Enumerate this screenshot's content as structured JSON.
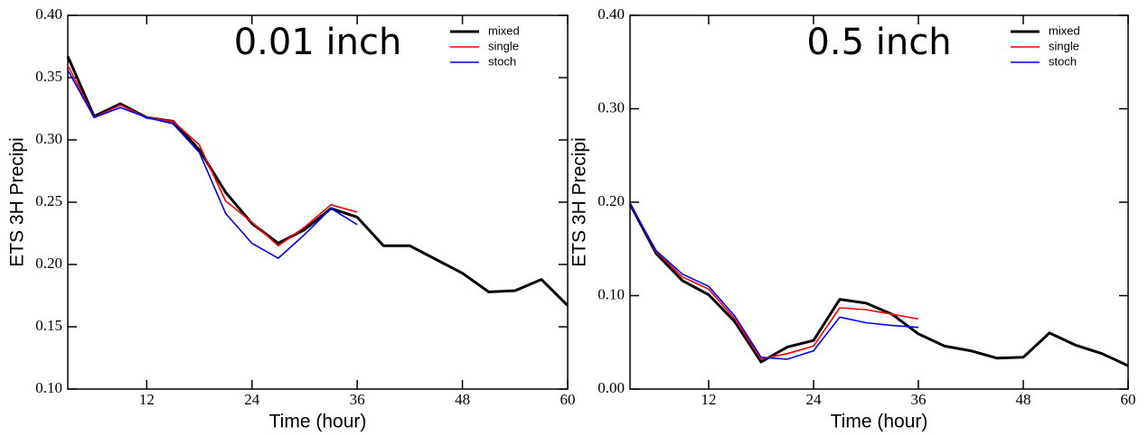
{
  "chart_data": [
    {
      "type": "line",
      "annotation": "0.01 inch",
      "xlabel": "Time (hour)",
      "ylabel": "ETS 3H Precipi",
      "x": [
        3,
        6,
        9,
        12,
        15,
        18,
        21,
        24,
        27,
        30,
        33,
        36,
        39,
        42,
        45,
        48,
        51,
        54,
        57,
        60
      ],
      "xlim": [
        3,
        60
      ],
      "xticks": [
        12,
        24,
        36,
        48,
        60
      ],
      "ylim": [
        0.1,
        0.4
      ],
      "yticks": [
        {
          "value": 0.1,
          "label": "0.10"
        },
        {
          "value": 0.15,
          "label": "0.15"
        },
        {
          "value": 0.2,
          "label": "0.20"
        },
        {
          "value": 0.25,
          "label": "0.25"
        },
        {
          "value": 0.3,
          "label": "0.30"
        },
        {
          "value": 0.35,
          "label": "0.35"
        },
        {
          "value": 0.4,
          "label": "0.40"
        }
      ],
      "legend": "upper right",
      "series": [
        {
          "name": "mixed",
          "color": "#000000",
          "values": [
            0.367,
            0.319,
            0.329,
            0.318,
            0.315,
            0.292,
            0.258,
            0.233,
            0.217,
            0.228,
            0.245,
            0.238,
            0.215,
            0.215,
            0.204,
            0.193,
            0.178,
            0.179,
            0.188,
            0.167
          ]
        },
        {
          "name": "single",
          "color": "#ff0000",
          "values": [
            0.36,
            0.318,
            0.328,
            0.318,
            0.315,
            0.296,
            0.251,
            0.234,
            0.215,
            0.23,
            0.248,
            0.242,
            null,
            null,
            null,
            null,
            null,
            null,
            null,
            null
          ]
        },
        {
          "name": "stoch",
          "color": "#0000ff",
          "values": [
            0.356,
            0.318,
            0.326,
            0.318,
            0.313,
            0.29,
            0.241,
            0.217,
            0.205,
            0.224,
            0.245,
            0.232,
            null,
            null,
            null,
            null,
            null,
            null,
            null,
            null
          ]
        }
      ]
    },
    {
      "type": "line",
      "annotation": "0.5 inch",
      "xlabel": "Time (hour)",
      "ylabel": "ETS 3H Precipi",
      "x": [
        3,
        6,
        9,
        12,
        15,
        18,
        21,
        24,
        27,
        30,
        33,
        36,
        39,
        42,
        45,
        48,
        51,
        54,
        57,
        60
      ],
      "xlim": [
        3,
        60
      ],
      "xticks": [
        12,
        24,
        36,
        48,
        60
      ],
      "ylim": [
        0,
        0.4
      ],
      "yticks": [
        {
          "value": 0,
          "label": "0.00"
        },
        {
          "value": 0.1,
          "label": "0.10"
        },
        {
          "value": 0.2,
          "label": "0.20"
        },
        {
          "value": 0.3,
          "label": "0.30"
        },
        {
          "value": 0.4,
          "label": "0.40"
        }
      ],
      "legend": "upper right",
      "series": [
        {
          "name": "mixed",
          "color": "#000000",
          "values": [
            0.198,
            0.145,
            0.116,
            0.101,
            0.072,
            0.029,
            0.045,
            0.052,
            0.096,
            0.092,
            0.08,
            0.059,
            0.046,
            0.041,
            0.033,
            0.034,
            0.06,
            0.047,
            0.038,
            0.025
          ]
        },
        {
          "name": "single",
          "color": "#ff0000",
          "values": [
            0.198,
            0.147,
            0.12,
            0.107,
            0.075,
            0.032,
            0.038,
            0.046,
            0.087,
            0.085,
            0.08,
            0.075,
            null,
            null,
            null,
            null,
            null,
            null,
            null,
            null
          ]
        },
        {
          "name": "stoch",
          "color": "#0000ff",
          "values": [
            0.198,
            0.148,
            0.123,
            0.11,
            0.078,
            0.034,
            0.032,
            0.041,
            0.077,
            0.071,
            0.068,
            0.066,
            null,
            null,
            null,
            null,
            null,
            null,
            null,
            null
          ]
        }
      ]
    }
  ]
}
